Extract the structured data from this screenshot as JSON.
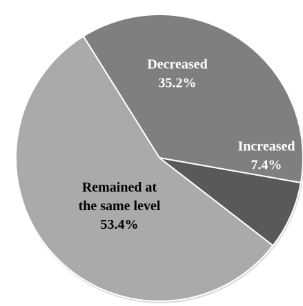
{
  "chart_data": {
    "type": "pie",
    "title": "",
    "slices": [
      {
        "label": "Decreased",
        "value": 35.2,
        "value_label": "35.2%",
        "color": "#7f7f7f",
        "text_color": "#ffffff"
      },
      {
        "label": "Increased",
        "value": 7.4,
        "value_label": "7.4%",
        "color": "#595959",
        "text_color": "#ffffff"
      },
      {
        "label": "Remained at the same level",
        "value": 53.4,
        "value_label": "53.4%",
        "color": "#aaaaaa",
        "text_color": "#000000"
      }
    ],
    "legend": "none"
  }
}
